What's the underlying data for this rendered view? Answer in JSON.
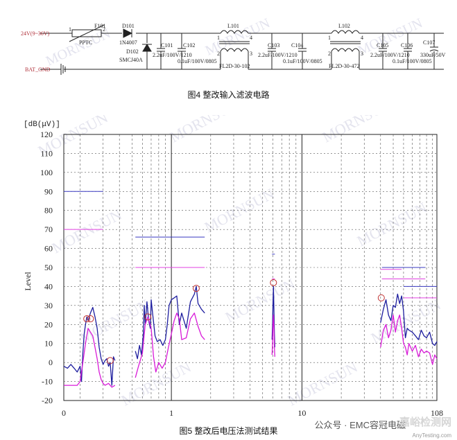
{
  "circuit": {
    "input_label": "24V(9~36V)",
    "ground_label": "BAT_GND",
    "pin_labels": [
      "1",
      "2",
      "1",
      "2",
      "4",
      "3",
      "1",
      "2",
      "4",
      "3"
    ],
    "components": [
      {
        "ref": "F101",
        "value": "PPTC"
      },
      {
        "ref": "D101",
        "value": "1N4007"
      },
      {
        "ref": "D102",
        "value": "SMCJ40A"
      },
      {
        "ref": "C101",
        "value": "2.2uF/100V/1210"
      },
      {
        "ref": "C102",
        "value": "0.1uF/100V/0805"
      },
      {
        "ref": "L101",
        "value": "FL2D-30-102"
      },
      {
        "ref": "C103",
        "value": "2.2uF/100V/1210"
      },
      {
        "ref": "C104",
        "value": "0.1uF/100V/0805"
      },
      {
        "ref": "L102",
        "value": "FL2D-30-472"
      },
      {
        "ref": "C105",
        "value": "2.2uF/100V/1210"
      },
      {
        "ref": "C106",
        "value": "0.1uF/100V/0805"
      },
      {
        "ref": "C107",
        "value": "330uF/50V"
      }
    ]
  },
  "caption_top": "图4 整改输入滤波电路",
  "caption_bottom": "图5  整改后电压法测试结果",
  "watermark": "MORNSUN",
  "chart_data": {
    "type": "line",
    "title": "",
    "y_unit_label": "[dB(μV)]",
    "ylabel": "Level",
    "xlabel": "",
    "x_scale": "log",
    "xlim": [
      0.15,
      108
    ],
    "ylim": [
      -20,
      120
    ],
    "y_ticks": [
      "120",
      "110",
      "100",
      "90",
      "80",
      "70",
      "60",
      "50",
      "40",
      "30",
      "20",
      "10",
      "0",
      "-10",
      "-20"
    ],
    "x_tick_labels": [
      {
        "value": 0.15,
        "label": "0"
      },
      {
        "value": 1,
        "label": "1"
      },
      {
        "value": 10,
        "label": "10"
      },
      {
        "value": 108,
        "label": "108"
      }
    ],
    "limit_lines": {
      "blue": [
        {
          "x": [
            0.15,
            0.3
          ],
          "y": 90
        },
        {
          "x": [
            0.53,
            1.8
          ],
          "y": 66
        },
        {
          "x": [
            5.9,
            6.2
          ],
          "y": 57
        },
        {
          "x": [
            41,
            88
          ],
          "y": 50
        },
        {
          "x": [
            60,
            108
          ],
          "y": 40
        }
      ],
      "magenta": [
        {
          "x": [
            0.15,
            0.3
          ],
          "y": 70
        },
        {
          "x": [
            0.53,
            1.8
          ],
          "y": 50
        },
        {
          "x": [
            5.9,
            6.2
          ],
          "y": 44
        },
        {
          "x": [
            40,
            58
          ],
          "y": 49
        },
        {
          "x": [
            41,
            88
          ],
          "y": 44
        },
        {
          "x": [
            60,
            108
          ],
          "y": 34
        }
      ]
    },
    "series": [
      {
        "color": "#1c1c9e",
        "points": [
          [
            0.15,
            -2
          ],
          [
            0.16,
            -3
          ],
          [
            0.17,
            -1
          ],
          [
            0.18,
            -3
          ],
          [
            0.19,
            -5
          ],
          [
            0.2,
            -2
          ],
          [
            0.205,
            -10
          ],
          [
            0.21,
            5
          ],
          [
            0.215,
            15
          ],
          [
            0.22,
            20
          ],
          [
            0.225,
            24
          ],
          [
            0.23,
            22
          ],
          [
            0.24,
            26
          ],
          [
            0.25,
            29
          ],
          [
            0.26,
            24
          ],
          [
            0.27,
            18
          ],
          [
            0.28,
            8
          ],
          [
            0.29,
            2
          ],
          [
            0.3,
            -1
          ],
          [
            0.31,
            1
          ],
          [
            0.32,
            2
          ],
          [
            0.33,
            -2
          ],
          [
            0.34,
            0
          ],
          [
            0.35,
            -12
          ],
          [
            0.36,
            3
          ],
          [
            0.37,
            1
          ]
        ]
      },
      {
        "color": "#d81ad8",
        "points": [
          [
            0.15,
            -12
          ],
          [
            0.17,
            -12
          ],
          [
            0.19,
            -12
          ],
          [
            0.2,
            -10
          ],
          [
            0.21,
            0
          ],
          [
            0.22,
            10
          ],
          [
            0.23,
            18
          ],
          [
            0.24,
            16
          ],
          [
            0.25,
            14
          ],
          [
            0.26,
            8
          ],
          [
            0.27,
            2
          ],
          [
            0.28,
            -5
          ],
          [
            0.29,
            -9
          ],
          [
            0.3,
            -11
          ],
          [
            0.31,
            -12
          ],
          [
            0.33,
            -11
          ],
          [
            0.35,
            -13
          ],
          [
            0.37,
            -12
          ]
        ]
      },
      {
        "color": "#1c1c9e",
        "points": [
          [
            0.53,
            6
          ],
          [
            0.55,
            2
          ],
          [
            0.57,
            9
          ],
          [
            0.59,
            4
          ],
          [
            0.61,
            15
          ],
          [
            0.62,
            30
          ],
          [
            0.63,
            20
          ],
          [
            0.65,
            32
          ],
          [
            0.67,
            22
          ],
          [
            0.69,
            18
          ],
          [
            0.7,
            33
          ],
          [
            0.72,
            25
          ],
          [
            0.75,
            14
          ],
          [
            0.78,
            11
          ],
          [
            0.82,
            12
          ],
          [
            0.86,
            9
          ],
          [
            0.9,
            12
          ],
          [
            0.93,
            20
          ],
          [
            0.96,
            30
          ],
          [
            1.0,
            33
          ],
          [
            1.05,
            34
          ],
          [
            1.1,
            35
          ],
          [
            1.15,
            20
          ],
          [
            1.2,
            26
          ],
          [
            1.3,
            18
          ],
          [
            1.4,
            32
          ],
          [
            1.5,
            36
          ],
          [
            1.55,
            40
          ],
          [
            1.6,
            31
          ],
          [
            1.7,
            28
          ],
          [
            1.8,
            26
          ]
        ]
      },
      {
        "color": "#d81ad8",
        "points": [
          [
            0.53,
            -8
          ],
          [
            0.56,
            -2
          ],
          [
            0.6,
            5
          ],
          [
            0.63,
            20
          ],
          [
            0.66,
            24
          ],
          [
            0.7,
            18
          ],
          [
            0.73,
            3
          ],
          [
            0.76,
            -5
          ],
          [
            0.8,
            0
          ],
          [
            0.85,
            -3
          ],
          [
            0.9,
            0
          ],
          [
            0.95,
            8
          ],
          [
            1.0,
            15
          ],
          [
            1.05,
            22
          ],
          [
            1.1,
            26
          ],
          [
            1.15,
            23
          ],
          [
            1.2,
            12
          ],
          [
            1.3,
            13
          ],
          [
            1.4,
            23
          ],
          [
            1.5,
            26
          ],
          [
            1.6,
            19
          ],
          [
            1.7,
            14
          ],
          [
            1.8,
            12
          ]
        ]
      },
      {
        "color": "#1c1c9e",
        "points": [
          [
            5.9,
            12
          ],
          [
            5.95,
            20
          ],
          [
            6.0,
            30
          ],
          [
            6.05,
            40
          ],
          [
            6.1,
            28
          ],
          [
            6.15,
            15
          ],
          [
            6.2,
            8
          ]
        ]
      },
      {
        "color": "#d81ad8",
        "points": [
          [
            5.9,
            4
          ],
          [
            5.95,
            10
          ],
          [
            6.0,
            20
          ],
          [
            6.05,
            25
          ],
          [
            6.1,
            18
          ],
          [
            6.15,
            8
          ],
          [
            6.2,
            3
          ]
        ]
      },
      {
        "color": "#1c1c9e",
        "points": [
          [
            40,
            21
          ],
          [
            42,
            28
          ],
          [
            44,
            33
          ],
          [
            46,
            25
          ],
          [
            48,
            22
          ],
          [
            50,
            30
          ],
          [
            52,
            29
          ],
          [
            54,
            36
          ],
          [
            56,
            31
          ],
          [
            58,
            35
          ],
          [
            60,
            27
          ],
          [
            62,
            13
          ],
          [
            64,
            18
          ],
          [
            66,
            17
          ],
          [
            70,
            16
          ],
          [
            74,
            14
          ],
          [
            78,
            12
          ],
          [
            82,
            17
          ],
          [
            86,
            14
          ],
          [
            90,
            13
          ],
          [
            95,
            16
          ],
          [
            100,
            10
          ],
          [
            104,
            9
          ],
          [
            108,
            11
          ]
        ]
      },
      {
        "color": "#d81ad8",
        "points": [
          [
            40,
            8
          ],
          [
            42,
            17
          ],
          [
            44,
            20
          ],
          [
            46,
            13
          ],
          [
            48,
            17
          ],
          [
            50,
            25
          ],
          [
            52,
            16
          ],
          [
            54,
            22
          ],
          [
            56,
            25
          ],
          [
            58,
            18
          ],
          [
            60,
            10
          ],
          [
            62,
            8
          ],
          [
            64,
            4
          ],
          [
            66,
            10
          ],
          [
            70,
            6
          ],
          [
            74,
            9
          ],
          [
            78,
            3
          ],
          [
            82,
            7
          ],
          [
            86,
            5
          ],
          [
            90,
            6
          ],
          [
            95,
            5
          ],
          [
            100,
            -1
          ],
          [
            104,
            4
          ],
          [
            108,
            2
          ]
        ]
      }
    ],
    "markers": [
      {
        "x": 0.225,
        "y": 23
      },
      {
        "x": 0.24,
        "y": 23
      },
      {
        "x": 0.34,
        "y": 1
      },
      {
        "x": 0.66,
        "y": 24
      },
      {
        "x": 1.55,
        "y": 39
      },
      {
        "x": 6.05,
        "y": 42
      },
      {
        "x": 40.5,
        "y": 34
      }
    ]
  },
  "branding": {
    "wechat_label": "公众号 · EMC容冠电磁",
    "brand_label": "嘉峪检测网",
    "site_label": "AnyTesting.com"
  }
}
